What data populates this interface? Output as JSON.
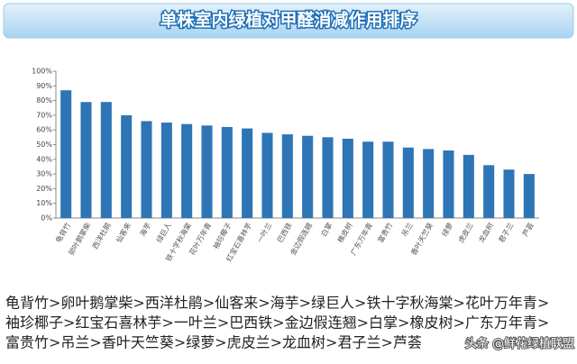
{
  "chart_data": {
    "type": "bar",
    "title": "单株室内绿植对甲醛消减作用排序",
    "categories": [
      "龟背竹",
      "卵叶鹅掌柴",
      "西洋杜鹃",
      "仙客来",
      "海芋",
      "绿巨人",
      "铁十字秋海棠",
      "花叶万年青",
      "袖珍椰子",
      "红宝石喜林芋",
      "一叶兰",
      "巴西铁",
      "金边假连翘",
      "白掌",
      "橡皮树",
      "广东万年青",
      "富贵竹",
      "吊兰",
      "香叶天竺葵",
      "绿萝",
      "虎皮兰",
      "龙血树",
      "君子兰",
      "芦荟"
    ],
    "values": [
      87,
      79,
      79,
      70,
      66,
      65,
      64,
      63,
      62,
      61,
      58,
      57,
      56,
      55,
      54,
      52,
      52,
      48,
      47,
      46,
      43,
      36,
      33,
      30
    ],
    "color": "#2e75b6",
    "ylim": [
      0,
      100
    ],
    "yticks": [
      {
        "value": 0,
        "label": "0%"
      },
      {
        "value": 10,
        "label": "10%"
      },
      {
        "value": 20,
        "label": "20%"
      },
      {
        "value": 30,
        "label": "30%"
      },
      {
        "value": 40,
        "label": "40%"
      },
      {
        "value": 50,
        "label": "50%"
      },
      {
        "value": 60,
        "label": "60%"
      },
      {
        "value": 70,
        "label": "70%"
      },
      {
        "value": 80,
        "label": "80%"
      },
      {
        "value": 90,
        "label": "90%"
      },
      {
        "value": 100,
        "label": "100%"
      }
    ],
    "grid": false,
    "annotations": [
      "龟背竹>卵叶鹅掌柴>西洋杜鹃>仙客来>海芋>绿巨人>铁十字秋海棠>花叶万年青>",
      "袖珍椰子>红宝石喜林芋>一叶兰>巴西铁>金边假连翘>白掌>橡皮树>广东万年青>",
      "富贵竹>吊兰>香叶天竺葵>绿萝>虎皮兰>龙血树>君子兰>芦荟"
    ]
  },
  "watermark": "头条 @鲜花绿植联盟"
}
